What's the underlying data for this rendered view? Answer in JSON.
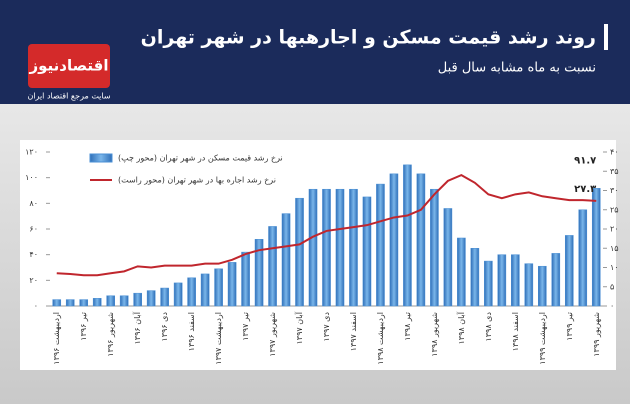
{
  "header": {
    "title": "روند رشد قیمت مسکن و اجارهبها در شهر تهران",
    "subtitle": "نسبت به ماه مشابه سال قبل",
    "logo": "اقتصادنیوز",
    "logo_tagline": "سایت مرجع اقتصاد ایران"
  },
  "chart_data": {
    "type": "bar-line",
    "categories": [
      "اردیبهشت ۱۳۹۶",
      null,
      "تیر ۱۳۹۶",
      null,
      "شهریور ۱۳۹۶",
      null,
      "آبان ۱۳۹۶",
      null,
      "دی ۱۳۹۶",
      null,
      "اسفند ۱۳۹۶",
      null,
      "اردیبهشت ۱۳۹۷",
      null,
      "تیر ۱۳۹۷",
      null,
      "شهریور ۱۳۹۷",
      null,
      "آبان ۱۳۹۷",
      null,
      "دی ۱۳۹۷",
      null,
      "اسفند ۱۳۹۷",
      null,
      "اردیبهشت ۱۳۹۸",
      null,
      "تیر ۱۳۹۸",
      null,
      "شهریور ۱۳۹۸",
      null,
      "آبان ۱۳۹۸",
      null,
      "دی ۱۳۹۸",
      null,
      "اسفند ۱۳۹۸",
      null,
      "اردیبهشت ۱۳۹۹",
      null,
      "تیر ۱۳۹۹",
      null,
      "شهریور ۱۳۹۹"
    ],
    "series": [
      {
        "name": "نرخ رشد قیمت مسکن در شهر تهران (محور چپ)",
        "type": "bar",
        "color": "#4a8fd4",
        "values": [
          5,
          5,
          5,
          6,
          8,
          8,
          10,
          12,
          14,
          18,
          22,
          25,
          29,
          34,
          42,
          52,
          62,
          72,
          84,
          91,
          91,
          91,
          91,
          85,
          95,
          103,
          110,
          103,
          91,
          76,
          53,
          45,
          35,
          40,
          40,
          33,
          31,
          41,
          55,
          75,
          91.7
        ],
        "value_labels": [
          null,
          null,
          null,
          null,
          null,
          null,
          null,
          null,
          null,
          null,
          null,
          null,
          null,
          null,
          null,
          null,
          null,
          null,
          null,
          null,
          null,
          null,
          null,
          null,
          null,
          null,
          null,
          null,
          null,
          null,
          null,
          null,
          null,
          null,
          null,
          null,
          null,
          null,
          null,
          null,
          "۹۱.۷"
        ]
      },
      {
        "name": "نرخ رشد اجاره بها در شهر تهران (محور راست)",
        "type": "line",
        "axis": "y2",
        "color": "#c0262d",
        "values": [
          8.5,
          8.3,
          8,
          8,
          8.5,
          9,
          10.3,
          10,
          10.5,
          10.5,
          10.5,
          11,
          11,
          12,
          13.5,
          14.5,
          15,
          15.5,
          16,
          18,
          19.5,
          20,
          20.5,
          21,
          22,
          23,
          23.5,
          25,
          29,
          32.5,
          34,
          32,
          29,
          28,
          29,
          29.5,
          28.5,
          28,
          27.5,
          27.5,
          27.3
        ],
        "value_labels": [
          null,
          null,
          null,
          null,
          null,
          null,
          null,
          null,
          null,
          null,
          null,
          null,
          null,
          null,
          null,
          null,
          null,
          null,
          null,
          null,
          null,
          null,
          null,
          null,
          null,
          null,
          null,
          null,
          null,
          null,
          null,
          null,
          null,
          null,
          null,
          null,
          null,
          null,
          null,
          null,
          "۲۷.۳"
        ]
      }
    ],
    "ylim": [
      0,
      120
    ],
    "yticks": [
      {
        "value": 0,
        "label": "۰"
      },
      {
        "value": 20,
        "label": "۲۰"
      },
      {
        "value": 40,
        "label": "۴۰"
      },
      {
        "value": 60,
        "label": "۶۰"
      },
      {
        "value": 80,
        "label": "۸۰"
      },
      {
        "value": 100,
        "label": "۱۰۰"
      },
      {
        "value": 120,
        "label": "۱۲۰"
      }
    ],
    "y2lim": [
      0,
      40
    ],
    "y2ticks": [
      {
        "value": 0,
        "label": "۰"
      },
      {
        "value": 5,
        "label": "۵"
      },
      {
        "value": 10,
        "label": "۱۰"
      },
      {
        "value": 15,
        "label": "۱۵"
      },
      {
        "value": 20,
        "label": "۲۰"
      },
      {
        "value": 25,
        "label": "۲۵"
      },
      {
        "value": 30,
        "label": "۳۰"
      },
      {
        "value": 35,
        "label": "۳۵"
      },
      {
        "value": 40,
        "label": "۴۰"
      }
    ],
    "legend": "top-left"
  }
}
